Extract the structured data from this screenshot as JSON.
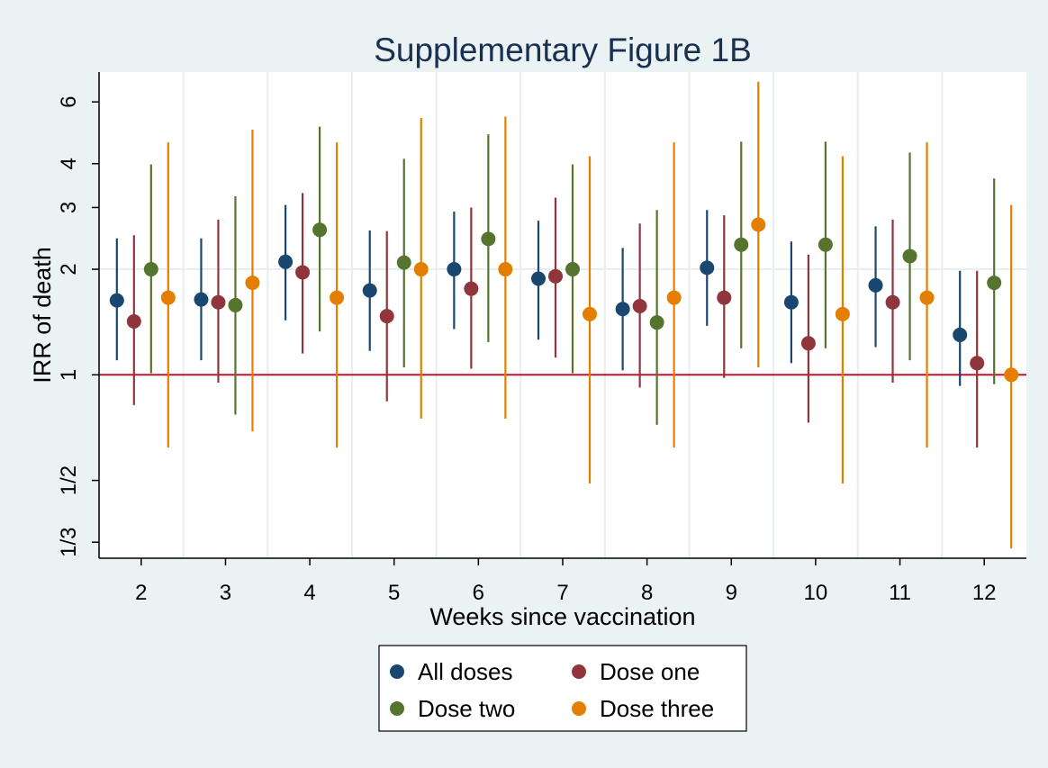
{
  "chart_data": {
    "type": "scatter",
    "title": "Supplementary Figure 1B",
    "xlabel": "Weeks since vaccination",
    "ylabel": "IRR of death",
    "y_scale": "log",
    "ylim": [
      0.3,
      7.3
    ],
    "yticks": [
      {
        "value": 0.3333,
        "label": "1/3"
      },
      {
        "value": 0.5,
        "label": "1/2"
      },
      {
        "value": 1,
        "label": "1"
      },
      {
        "value": 2,
        "label": "2"
      },
      {
        "value": 3,
        "label": "3"
      },
      {
        "value": 4,
        "label": "4"
      },
      {
        "value": 6,
        "label": "6"
      }
    ],
    "categories": [
      "2",
      "3",
      "4",
      "5",
      "6",
      "7",
      "8",
      "9",
      "10",
      "11",
      "12"
    ],
    "reference_line": {
      "y": 1,
      "color": "#c8102e"
    },
    "grid": true,
    "legend_position": "bottom",
    "series": [
      {
        "name": "All doses",
        "color": "#1a476f",
        "estimate": [
          1.63,
          1.64,
          2.1,
          1.74,
          2.0,
          1.88,
          1.54,
          2.02,
          1.61,
          1.8,
          1.3
        ],
        "lower": [
          1.1,
          1.1,
          1.43,
          1.17,
          1.35,
          1.26,
          1.03,
          1.38,
          1.08,
          1.2,
          0.93
        ],
        "upper": [
          2.45,
          2.45,
          3.05,
          2.58,
          2.92,
          2.75,
          2.3,
          2.95,
          2.4,
          2.65,
          1.98
        ]
      },
      {
        "name": "Dose one",
        "color": "#90353b",
        "estimate": [
          1.42,
          1.61,
          1.96,
          1.47,
          1.76,
          1.91,
          1.57,
          1.66,
          1.23,
          1.61,
          1.08
        ],
        "lower": [
          0.82,
          0.95,
          1.15,
          0.84,
          1.04,
          1.12,
          0.92,
          0.98,
          0.73,
          0.95,
          0.62
        ],
        "upper": [
          2.5,
          2.77,
          3.3,
          2.57,
          3.0,
          3.2,
          2.7,
          2.85,
          2.2,
          2.77,
          1.98
        ]
      },
      {
        "name": "Dose two",
        "color": "#55752f",
        "estimate": [
          2.0,
          1.58,
          2.59,
          2.09,
          2.44,
          2.0,
          1.41,
          2.35,
          2.35,
          2.18,
          1.83
        ],
        "lower": [
          1.01,
          0.77,
          1.33,
          1.05,
          1.24,
          1.01,
          0.72,
          1.19,
          1.19,
          1.1,
          0.94
        ],
        "upper": [
          3.98,
          3.23,
          5.1,
          4.13,
          4.85,
          3.98,
          2.95,
          4.62,
          4.62,
          4.3,
          3.63
        ]
      },
      {
        "name": "Dose three",
        "color": "#e37e00",
        "estimate": [
          1.66,
          1.83,
          1.66,
          2.0,
          2.0,
          1.49,
          1.66,
          2.68,
          1.49,
          1.66,
          1.0
        ],
        "lower": [
          0.62,
          0.69,
          0.62,
          0.75,
          0.75,
          0.49,
          0.62,
          1.05,
          0.49,
          0.62,
          0.32
        ],
        "upper": [
          4.6,
          5.0,
          4.6,
          5.4,
          5.45,
          4.2,
          4.6,
          6.85,
          4.2,
          4.6,
          3.05
        ]
      }
    ]
  }
}
